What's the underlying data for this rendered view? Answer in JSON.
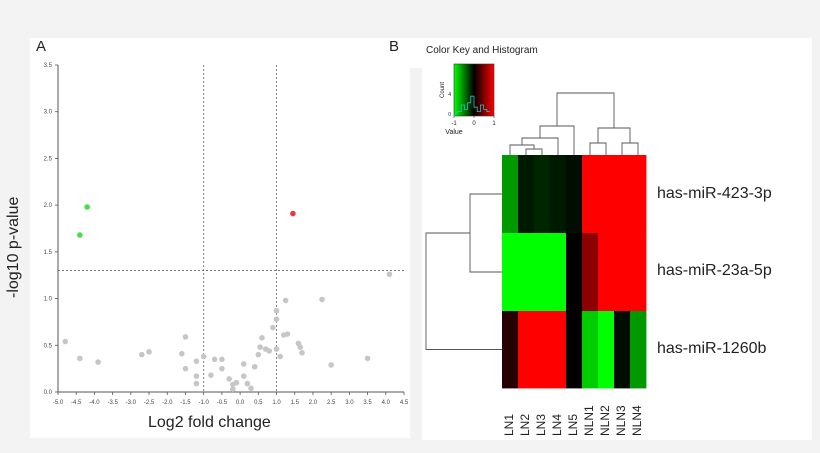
{
  "panels": {
    "a_label": "A",
    "b_label": "B"
  },
  "chart_data": [
    {
      "type": "scatter",
      "title": "",
      "xlabel": "Log2 fold change",
      "ylabel": "-log10 p-value",
      "xlim": [
        -5.0,
        4.5
      ],
      "ylim": [
        0,
        3.5
      ],
      "xticks": [
        "-5.0",
        "-4.5",
        "-4.0",
        "-3.5",
        "-3.0",
        "-2.5",
        "-2.0",
        "-1.5",
        "-1.0",
        "-0.5",
        "0.0",
        "0.5",
        "1.0",
        "1.5",
        "2.0",
        "2.5",
        "3.0",
        "3.5",
        "4.0",
        "4.5"
      ],
      "yticks": [
        "0.0",
        "0.5",
        "1.0",
        "1.5",
        "2.0",
        "2.5",
        "3.0",
        "3.5"
      ],
      "thresholds": {
        "fc_low": -1.0,
        "fc_high": 1.0,
        "p_line": 1.3
      },
      "colors": {
        "up": "#e83a3a",
        "down": "#45e045",
        "ns": "#c6c6c6"
      },
      "series": [
        {
          "name": "down",
          "points": [
            [
              -4.2,
              1.98
            ],
            [
              -4.4,
              1.68
            ]
          ]
        },
        {
          "name": "up",
          "points": [
            [
              1.45,
              1.91
            ]
          ]
        },
        {
          "name": "ns",
          "points": [
            [
              -4.8,
              0.54
            ],
            [
              -4.4,
              0.36
            ],
            [
              -3.9,
              0.32
            ],
            [
              -2.7,
              0.4
            ],
            [
              -2.5,
              0.43
            ],
            [
              -1.6,
              0.41
            ],
            [
              -1.5,
              0.59
            ],
            [
              -1.5,
              0.25
            ],
            [
              -1.2,
              0.33
            ],
            [
              -1.2,
              0.17
            ],
            [
              -1.2,
              0.09
            ],
            [
              -1.0,
              0.38
            ],
            [
              -0.8,
              0.18
            ],
            [
              -0.7,
              0.35
            ],
            [
              -0.5,
              0.35
            ],
            [
              -0.5,
              0.25
            ],
            [
              -0.3,
              0.14
            ],
            [
              -0.2,
              0.08
            ],
            [
              -0.2,
              0.03
            ],
            [
              -0.1,
              0.1
            ],
            [
              0.1,
              0.3
            ],
            [
              0.1,
              0.17
            ],
            [
              0.2,
              0.09
            ],
            [
              0.3,
              0.04
            ],
            [
              0.4,
              0.27
            ],
            [
              0.5,
              0.4
            ],
            [
              0.55,
              0.48
            ],
            [
              0.6,
              0.58
            ],
            [
              0.7,
              0.46
            ],
            [
              0.8,
              0.44
            ],
            [
              0.9,
              0.69
            ],
            [
              1.0,
              0.87
            ],
            [
              1.0,
              0.78
            ],
            [
              1.0,
              0.46
            ],
            [
              1.1,
              0.38
            ],
            [
              1.2,
              0.61
            ],
            [
              1.25,
              0.98
            ],
            [
              1.3,
              0.62
            ],
            [
              1.6,
              0.52
            ],
            [
              1.65,
              0.48
            ],
            [
              1.7,
              0.42
            ],
            [
              2.25,
              0.99
            ],
            [
              2.5,
              0.29
            ],
            [
              3.5,
              0.36
            ],
            [
              4.1,
              1.26
            ]
          ]
        }
      ]
    },
    {
      "type": "heatmap",
      "title": "Color Key and Histogram",
      "color_key": {
        "xlabel": "Value",
        "ylabel": "Count",
        "ticks": [
          "-1",
          "0",
          "1"
        ],
        "yticks": [
          "0",
          "4"
        ]
      },
      "columns": [
        "LN1",
        "LN2",
        "LN3",
        "LN4",
        "LN5",
        "NLN1",
        "NLN2",
        "NLN3",
        "NLN4"
      ],
      "rows": [
        "has-miR-423-3p",
        "has-miR-23a-5p",
        "has-miR-1260b"
      ],
      "values": [
        [
          -0.6,
          -0.1,
          -0.15,
          -0.1,
          -0.05,
          1.0,
          1.0,
          1.0,
          1.0
        ],
        [
          -1.0,
          -1.0,
          -1.0,
          -1.0,
          0.0,
          0.55,
          1.0,
          1.0,
          1.0
        ],
        [
          0.15,
          1.0,
          1.0,
          1.0,
          0.0,
          -0.8,
          -1.0,
          -0.05,
          -0.6
        ]
      ],
      "colors": {
        "low": "#00ff00",
        "mid": "#000000",
        "high": "#ff0000"
      }
    }
  ]
}
